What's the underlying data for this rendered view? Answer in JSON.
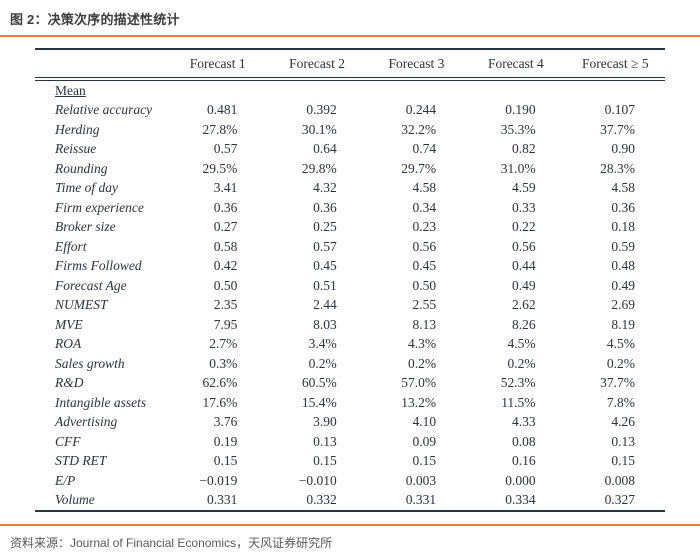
{
  "title": "图 2：决策次序的描述性统计",
  "accent_color": "#ed7c31",
  "table": {
    "section_label": "Mean",
    "columns": [
      "Forecast 1",
      "Forecast 2",
      "Forecast 3",
      "Forecast 4",
      "Forecast ≥ 5"
    ],
    "rows": [
      {
        "label": "Relative accuracy",
        "values": [
          "0.481",
          "0.392",
          "0.244",
          "0.190",
          "0.107"
        ]
      },
      {
        "label": "Herding",
        "values": [
          "27.8%",
          "30.1%",
          "32.2%",
          "35.3%",
          "37.7%"
        ]
      },
      {
        "label": "Reissue",
        "values": [
          "0.57",
          "0.64",
          "0.74",
          "0.82",
          "0.90"
        ]
      },
      {
        "label": "Rounding",
        "values": [
          "29.5%",
          "29.8%",
          "29.7%",
          "31.0%",
          "28.3%"
        ]
      },
      {
        "label": "Time of day",
        "values": [
          "3.41",
          "4.32",
          "4.58",
          "4.59",
          "4.58"
        ]
      },
      {
        "label": "Firm experience",
        "values": [
          "0.36",
          "0.36",
          "0.34",
          "0.33",
          "0.36"
        ]
      },
      {
        "label": "Broker size",
        "values": [
          "0.27",
          "0.25",
          "0.23",
          "0.22",
          "0.18"
        ]
      },
      {
        "label": "Effort",
        "values": [
          "0.58",
          "0.57",
          "0.56",
          "0.56",
          "0.59"
        ]
      },
      {
        "label": "Firms Followed",
        "values": [
          "0.42",
          "0.45",
          "0.45",
          "0.44",
          "0.48"
        ]
      },
      {
        "label": "Forecast Age",
        "values": [
          "0.50",
          "0.51",
          "0.50",
          "0.49",
          "0.49"
        ]
      },
      {
        "label": "NUMEST",
        "values": [
          "2.35",
          "2.44",
          "2.55",
          "2.62",
          "2.69"
        ]
      },
      {
        "label": "MVE",
        "values": [
          "7.95",
          "8.03",
          "8.13",
          "8.26",
          "8.19"
        ]
      },
      {
        "label": "ROA",
        "values": [
          "2.7%",
          "3.4%",
          "4.3%",
          "4.5%",
          "4.5%"
        ]
      },
      {
        "label": "Sales growth",
        "values": [
          "0.3%",
          "0.2%",
          "0.2%",
          "0.2%",
          "0.2%"
        ]
      },
      {
        "label": "R&D",
        "values": [
          "62.6%",
          "60.5%",
          "57.0%",
          "52.3%",
          "37.7%"
        ]
      },
      {
        "label": "Intangible assets",
        "values": [
          "17.6%",
          "15.4%",
          "13.2%",
          "11.5%",
          "7.8%"
        ]
      },
      {
        "label": "Advertising",
        "values": [
          "3.76",
          "3.90",
          "4.10",
          "4.33",
          "4.26"
        ]
      },
      {
        "label": "CFF",
        "values": [
          "0.19",
          "0.13",
          "0.09",
          "0.08",
          "0.13"
        ]
      },
      {
        "label": "STD RET",
        "values": [
          "0.15",
          "0.15",
          "0.15",
          "0.16",
          "0.15"
        ]
      },
      {
        "label": "E/P",
        "values": [
          "−0.019",
          "−0.010",
          "0.003",
          "0.000",
          "0.008"
        ]
      },
      {
        "label": "Volume",
        "values": [
          "0.331",
          "0.332",
          "0.331",
          "0.334",
          "0.327"
        ]
      }
    ]
  },
  "footer": {
    "source": "资料来源：Journal of Financial Economics，天风证券研究所"
  }
}
